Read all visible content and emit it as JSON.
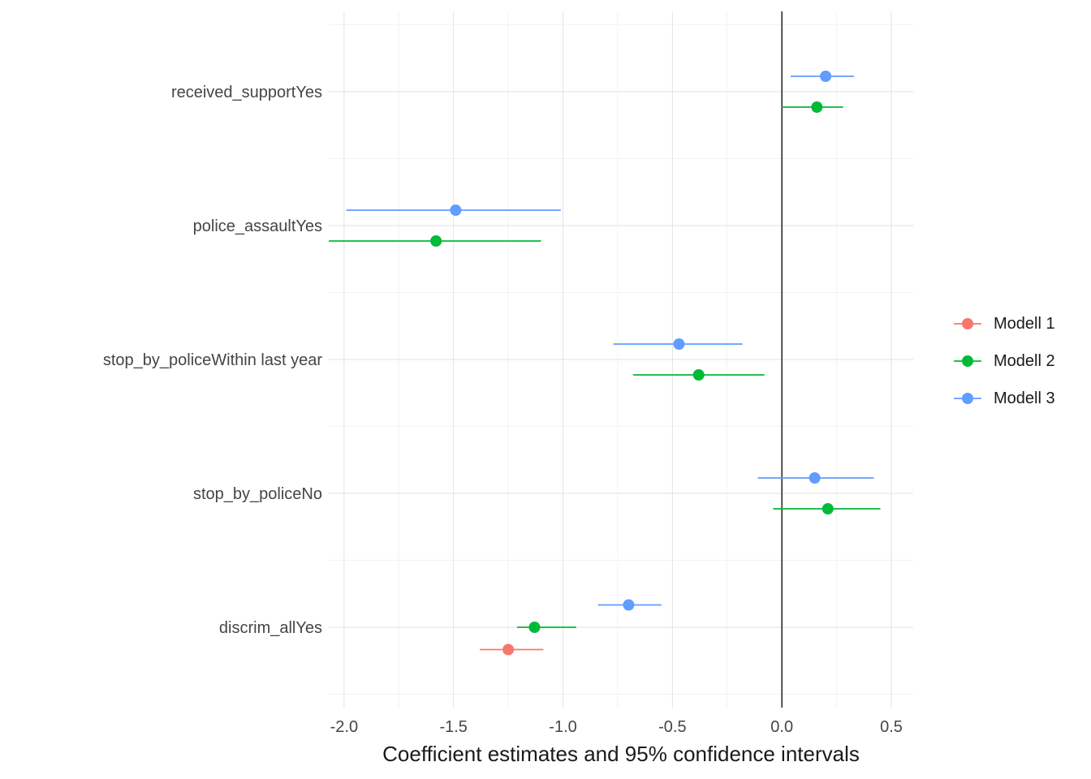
{
  "chart_data": {
    "type": "pointrange",
    "title": "",
    "xlabel": "Coefficient estimates and 95% confidence intervals",
    "ylabel": "",
    "legend_position": "right",
    "grid": true,
    "xlim": [
      -2.07,
      0.6
    ],
    "x_ticks": [
      -2.0,
      -1.5,
      -1.0,
      -0.5,
      0.0,
      0.5
    ],
    "x_tick_labels": [
      "-2.0",
      "-1.5",
      "-1.0",
      "-0.5",
      "0.0",
      "0.5"
    ],
    "x_minor_ticks": [
      -1.75,
      -1.25,
      -0.75,
      -0.25,
      0.25
    ],
    "zero_line": 0.0,
    "series": [
      {
        "name": "Modell 1",
        "color": "#F8766D"
      },
      {
        "name": "Modell 2",
        "color": "#00BA38"
      },
      {
        "name": "Modell 3",
        "color": "#619CFF"
      }
    ],
    "rows": [
      {
        "label": "received_supportYes",
        "points": [
          {
            "model": "Modell 3",
            "estimate": 0.2,
            "ci_low": 0.04,
            "ci_high": 0.33
          },
          {
            "model": "Modell 2",
            "estimate": 0.16,
            "ci_low": 0.0,
            "ci_high": 0.28
          }
        ]
      },
      {
        "label": "police_assaultYes",
        "points": [
          {
            "model": "Modell 3",
            "estimate": -1.49,
            "ci_low": -1.99,
            "ci_high": -1.01
          },
          {
            "model": "Modell 2",
            "estimate": -1.58,
            "ci_low": -2.07,
            "ci_high": -1.1
          }
        ]
      },
      {
        "label": "stop_by_policeWithin last year",
        "points": [
          {
            "model": "Modell 3",
            "estimate": -0.47,
            "ci_low": -0.77,
            "ci_high": -0.18
          },
          {
            "model": "Modell 2",
            "estimate": -0.38,
            "ci_low": -0.68,
            "ci_high": -0.08
          }
        ]
      },
      {
        "label": "stop_by_policeNo",
        "points": [
          {
            "model": "Modell 3",
            "estimate": 0.15,
            "ci_low": -0.11,
            "ci_high": 0.42
          },
          {
            "model": "Modell 2",
            "estimate": 0.21,
            "ci_low": -0.04,
            "ci_high": 0.45
          }
        ]
      },
      {
        "label": "discrim_allYes",
        "points": [
          {
            "model": "Modell 3",
            "estimate": -0.7,
            "ci_low": -0.84,
            "ci_high": -0.55
          },
          {
            "model": "Modell 2",
            "estimate": -1.13,
            "ci_low": -1.21,
            "ci_high": -0.94
          },
          {
            "model": "Modell 1",
            "estimate": -1.25,
            "ci_low": -1.38,
            "ci_high": -1.09
          }
        ]
      }
    ],
    "colors": {
      "grid_major": "#E2E2E2",
      "grid_minor": "#F2F2F2",
      "zero_line": "#000000",
      "axis_text": "#454545",
      "title_text": "#1a1a1a"
    }
  }
}
